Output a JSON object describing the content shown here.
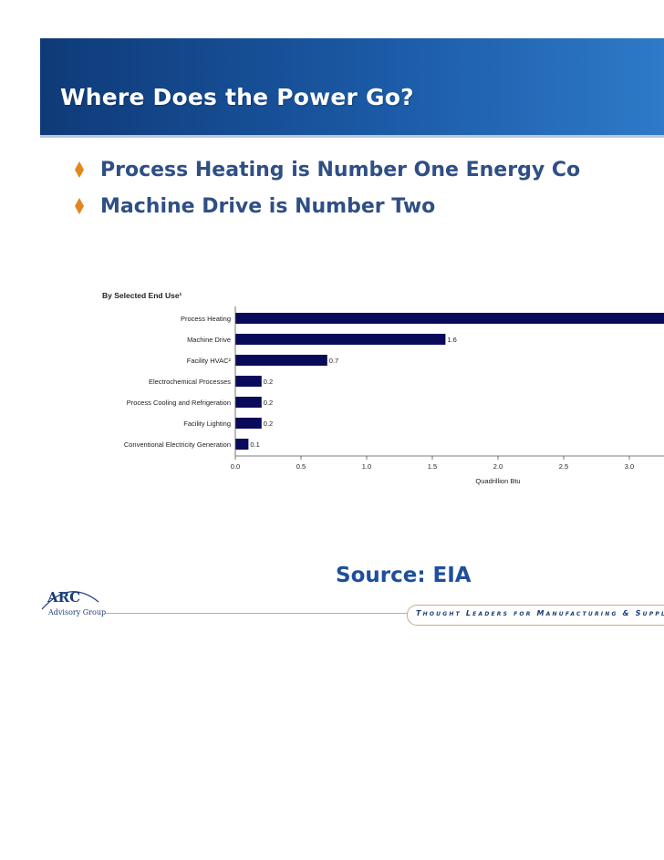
{
  "slide": {
    "title": "Where Does the Power Go?",
    "bullets": [
      "Process Heating is Number One Energy Co",
      "Machine Drive is Number Two"
    ],
    "source": "Source: EIA",
    "logo": {
      "name": "ARC",
      "subtitle": "Advisory Group"
    },
    "tagline": "Thought Leaders for Manufacturing & Supply C",
    "colors": {
      "header": "#1b5aa6",
      "bullet_text": "#2f4f86",
      "diamond": "#e2871e",
      "bar": "#0a0a5a"
    }
  },
  "chart_data": {
    "type": "bar",
    "orientation": "horizontal",
    "title": "By Selected End Use¹",
    "categories": [
      "Process Heating",
      "Machine Drive",
      "Facility HVAC²",
      "Electrochemical Processes",
      "Process Cooling and Refrigeration",
      "Facility Lighting",
      "Conventional Electricity Generation"
    ],
    "values": [
      3.3,
      1.6,
      0.7,
      0.2,
      0.2,
      0.2,
      0.1
    ],
    "data_labels": [
      "",
      "1.6",
      "0.7",
      "0.2",
      "0.2",
      "0.2",
      "0.1"
    ],
    "xlabel": "Quadrillion Btu",
    "xticks": [
      "0.0",
      "0.5",
      "1.0",
      "1.5",
      "2.0",
      "2.5",
      "3.0"
    ],
    "xlim": [
      0,
      3.4
    ],
    "grid": false,
    "legend": "none"
  }
}
